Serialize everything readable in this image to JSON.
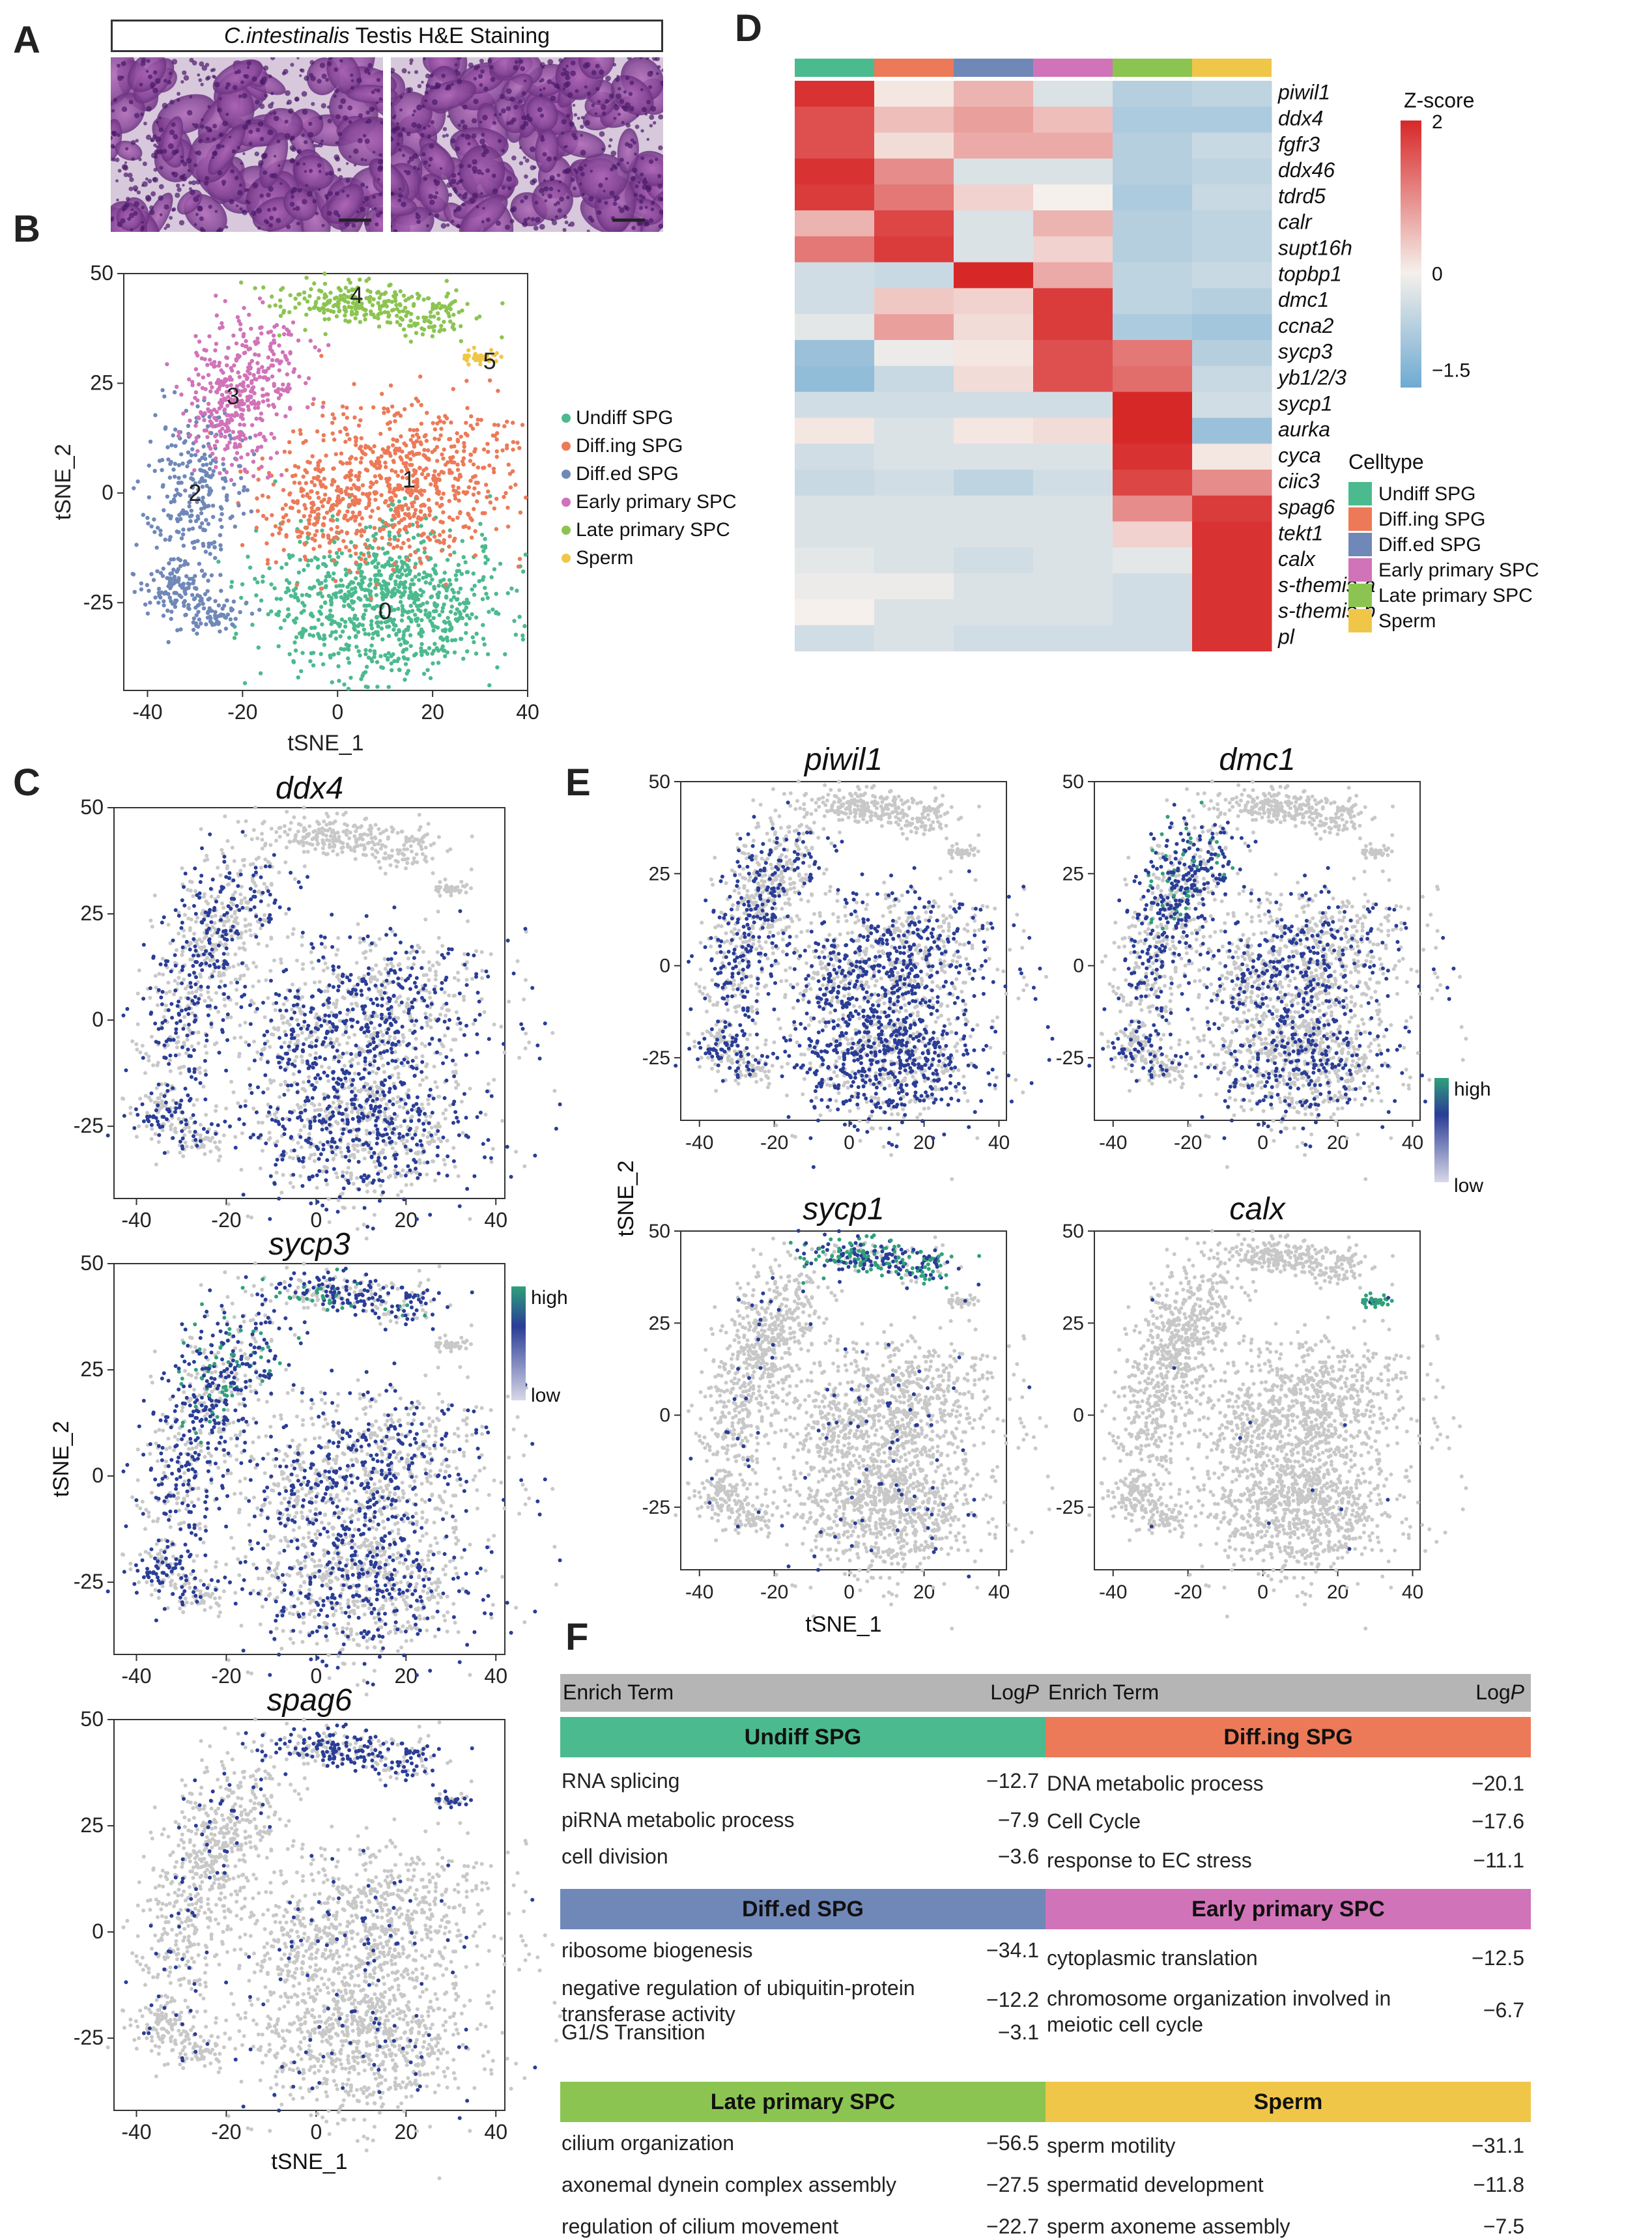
{
  "letters": {
    "a": "A",
    "b": "B",
    "c": "C",
    "d": "D",
    "e": "E",
    "f": "F"
  },
  "panel_a": {
    "species": "C.intestinalis",
    "suffix": " Testis H&E Staining"
  },
  "celltypes": [
    {
      "name": "Undiff SPG",
      "color": "#4cba8f"
    },
    {
      "name": "Diff.ing SPG",
      "color": "#ec7a58"
    },
    {
      "name": "Diff.ed SPG",
      "color": "#7088b8"
    },
    {
      "name": "Early primary SPC",
      "color": "#d173b8"
    },
    {
      "name": "Late primary SPC",
      "color": "#8cc451"
    },
    {
      "name": "Sperm",
      "color": "#f0c648"
    }
  ],
  "tsne_axes": {
    "xlabel": "tSNE_1",
    "ylabel": "tSNE_2",
    "xticks": [
      -40,
      -20,
      0,
      20,
      40
    ],
    "yticks": [
      50,
      25,
      0,
      -25
    ]
  },
  "chart_data": [
    {
      "type": "scatter",
      "title": "",
      "clusters": [
        {
          "label": "0",
          "celltype": "Undiff SPG",
          "center": [
            10,
            -27
          ]
        },
        {
          "label": "1",
          "celltype": "Diff.ing SPG",
          "center": [
            15,
            3
          ]
        },
        {
          "label": "2",
          "celltype": "Diff.ed SPG",
          "center": [
            -30,
            0
          ]
        },
        {
          "label": "3",
          "celltype": "Early primary SPC",
          "center": [
            -22,
            22
          ]
        },
        {
          "label": "4",
          "celltype": "Late primary SPC",
          "center": [
            4,
            45
          ]
        },
        {
          "label": "5",
          "celltype": "Sperm",
          "center": [
            32,
            30
          ]
        }
      ],
      "xlabel": "tSNE_1",
      "ylabel": "tSNE_2",
      "xlim": [
        -45,
        40
      ],
      "ylim": [
        -45,
        50
      ]
    },
    {
      "type": "heatmap",
      "title": "Z-score",
      "rows": [
        "piwil1",
        "ddx4",
        "fgfr3",
        "ddx46",
        "tdrd5",
        "calr",
        "supt16h",
        "topbp1",
        "dmc1",
        "ccna2",
        "sycp3",
        "yb1/2/3",
        "sycp1",
        "aurka",
        "cyca",
        "ciic3",
        "spag6",
        "tekt1",
        "calx",
        "s-themis-a",
        "s-themis-b",
        "pl"
      ],
      "columns": [
        "Undiff SPG",
        "Diff.ing SPG",
        "Diff.ed SPG",
        "Early primary SPC",
        "Late primary SPC",
        "Sperm"
      ],
      "values": [
        [
          1.9,
          0.1,
          0.6,
          -0.3,
          -0.7,
          -0.6
        ],
        [
          1.6,
          0.5,
          0.8,
          0.5,
          -0.8,
          -0.8
        ],
        [
          1.6,
          0.2,
          0.7,
          0.7,
          -0.7,
          -0.5
        ],
        [
          1.9,
          1.0,
          -0.3,
          -0.3,
          -0.7,
          -0.6
        ],
        [
          1.8,
          1.2,
          0.3,
          0.0,
          -0.8,
          -0.5
        ],
        [
          0.6,
          1.7,
          -0.3,
          0.6,
          -0.7,
          -0.6
        ],
        [
          1.2,
          1.8,
          -0.3,
          0.3,
          -0.7,
          -0.6
        ],
        [
          -0.4,
          -0.5,
          2.0,
          0.7,
          -0.6,
          -0.5
        ],
        [
          -0.4,
          0.4,
          0.3,
          1.8,
          -0.6,
          -0.7
        ],
        [
          -0.2,
          0.8,
          0.2,
          1.8,
          -0.8,
          -0.9
        ],
        [
          -1.0,
          -0.1,
          0.1,
          1.6,
          1.2,
          -0.7
        ],
        [
          -1.1,
          -0.5,
          0.2,
          1.6,
          1.3,
          -0.5
        ],
        [
          -0.4,
          -0.4,
          -0.4,
          -0.4,
          2.0,
          -0.4
        ],
        [
          0.1,
          -0.3,
          0.1,
          0.2,
          2.0,
          -1.0
        ],
        [
          -0.4,
          -0.3,
          -0.3,
          -0.3,
          1.9,
          0.1
        ],
        [
          -0.5,
          -0.4,
          -0.6,
          -0.4,
          1.7,
          1.0
        ],
        [
          -0.3,
          -0.3,
          -0.3,
          -0.3,
          1.0,
          1.8
        ],
        [
          -0.3,
          -0.3,
          -0.3,
          -0.3,
          0.3,
          1.9
        ],
        [
          -0.2,
          -0.3,
          -0.4,
          -0.3,
          -0.2,
          1.9
        ],
        [
          -0.1,
          -0.1,
          -0.3,
          -0.3,
          -0.4,
          1.9
        ],
        [
          0.0,
          -0.3,
          -0.3,
          -0.3,
          -0.4,
          1.9
        ],
        [
          -0.4,
          -0.3,
          -0.4,
          -0.4,
          -0.4,
          1.9
        ]
      ],
      "scale_ticks": [
        "2",
        "0",
        "−1.5"
      ],
      "ylim": [
        -1.5,
        2
      ]
    },
    {
      "type": "scatter",
      "title": "ddx4",
      "panel": "C"
    },
    {
      "type": "scatter",
      "title": "sycp3",
      "panel": "C"
    },
    {
      "type": "scatter",
      "title": "spag6",
      "panel": "C"
    },
    {
      "type": "scatter",
      "title": "piwil1",
      "panel": "E"
    },
    {
      "type": "scatter",
      "title": "dmc1",
      "panel": "E"
    },
    {
      "type": "scatter",
      "title": "sycp1",
      "panel": "E"
    },
    {
      "type": "scatter",
      "title": "calx",
      "panel": "E"
    }
  ],
  "heat_legend": {
    "title": "Z-score",
    "celltype_title": "Celltype"
  },
  "expr_legend": {
    "high": "high",
    "low": "low"
  },
  "panel_c_genes": [
    "ddx4",
    "sycp3",
    "spag6"
  ],
  "panel_e_genes": [
    "piwil1",
    "dmc1",
    "sycp1",
    "calx"
  ],
  "panel_f": {
    "col1": "Enrich Term",
    "col2": "Log",
    "col2_italic": "P",
    "sections": [
      {
        "title": "Undiff SPG",
        "rows": [
          [
            "RNA splicing",
            "−12.7"
          ],
          [
            "piRNA metabolic process",
            "−7.9"
          ],
          [
            "cell division",
            "−3.6"
          ]
        ]
      },
      {
        "title": "Diff.ing SPG",
        "rows": [
          [
            "DNA metabolic process",
            "−20.1"
          ],
          [
            "Cell Cycle",
            "−17.6"
          ],
          [
            "response to EC stress",
            "−11.1"
          ]
        ]
      },
      {
        "title": "Diff.ed SPG",
        "rows": [
          [
            "ribosome biogenesis",
            "−34.1"
          ],
          [
            "negative regulation of ubiquitin-protein transferase activity",
            "−12.2"
          ],
          [
            "G1/S Transition",
            "−3.1"
          ]
        ]
      },
      {
        "title": "Early primary SPC",
        "rows": [
          [
            "cytoplasmic translation",
            "−12.5"
          ],
          [
            "chromosome organization involved in meiotic cell cycle",
            "−6.7"
          ]
        ]
      },
      {
        "title": "Late primary SPC",
        "rows": [
          [
            "cilium organization",
            "−56.5"
          ],
          [
            "axonemal dynein complex assembly",
            "−27.5"
          ],
          [
            "regulation of cilium movement",
            "−22.7"
          ]
        ]
      },
      {
        "title": "Sperm",
        "rows": [
          [
            "sperm motility",
            "−31.1"
          ],
          [
            "spermatid development",
            "−11.8"
          ],
          [
            "sperm axoneme assembly",
            "−7.5"
          ]
        ]
      }
    ]
  }
}
